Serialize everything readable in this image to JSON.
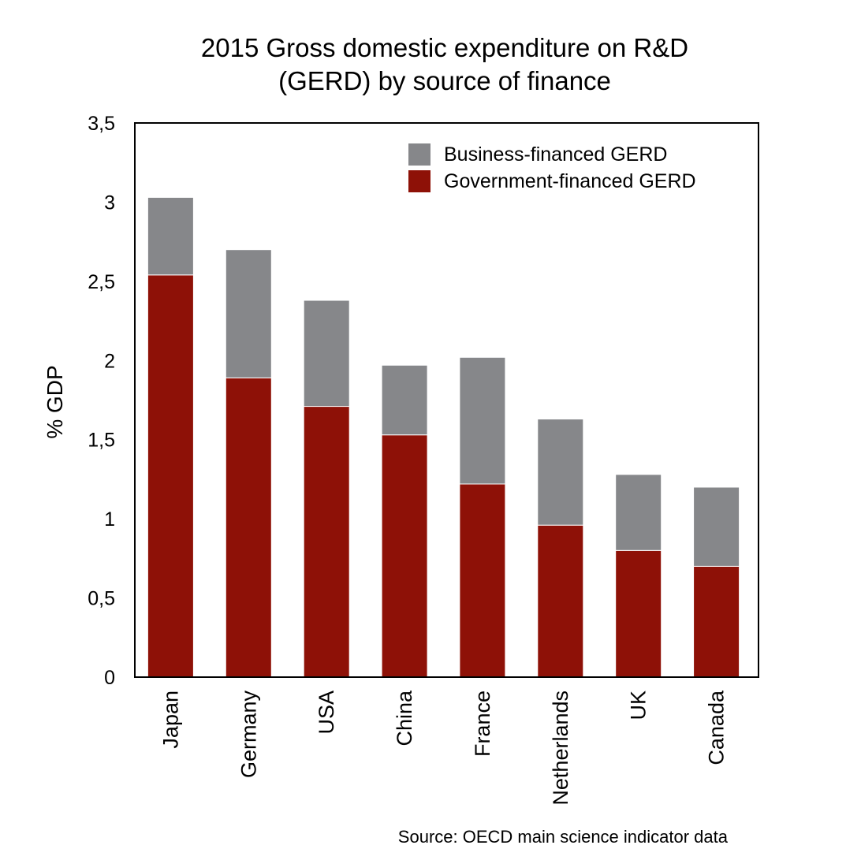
{
  "chart_data": {
    "type": "bar",
    "stacked": true,
    "title_lines": [
      "2015 Gross domestic expenditure on R&D",
      "(GERD) by source of finance"
    ],
    "xlabel": "",
    "ylabel": "% GDP",
    "ylim": [
      0,
      3.5
    ],
    "yticks": [
      "0",
      "0,5",
      "1",
      "1,5",
      "2",
      "2,5",
      "3",
      "3,5"
    ],
    "grid": false,
    "legend_position": "top-right",
    "categories": [
      "Japan",
      "Germany",
      "USA",
      "China",
      "France",
      "Netherlands",
      "UK",
      "Canada"
    ],
    "series": [
      {
        "name": "Government-financed GERD",
        "color": "#8e1107",
        "values": [
          2.54,
          1.89,
          1.71,
          1.53,
          1.22,
          0.96,
          0.8,
          0.7
        ]
      },
      {
        "name": "Business-financed GERD",
        "color": "#86878a",
        "values": [
          0.49,
          0.81,
          0.67,
          0.44,
          0.8,
          0.67,
          0.48,
          0.5
        ]
      }
    ],
    "legend_order": [
      1,
      0
    ],
    "source": "Source: OECD main science indicator data"
  }
}
